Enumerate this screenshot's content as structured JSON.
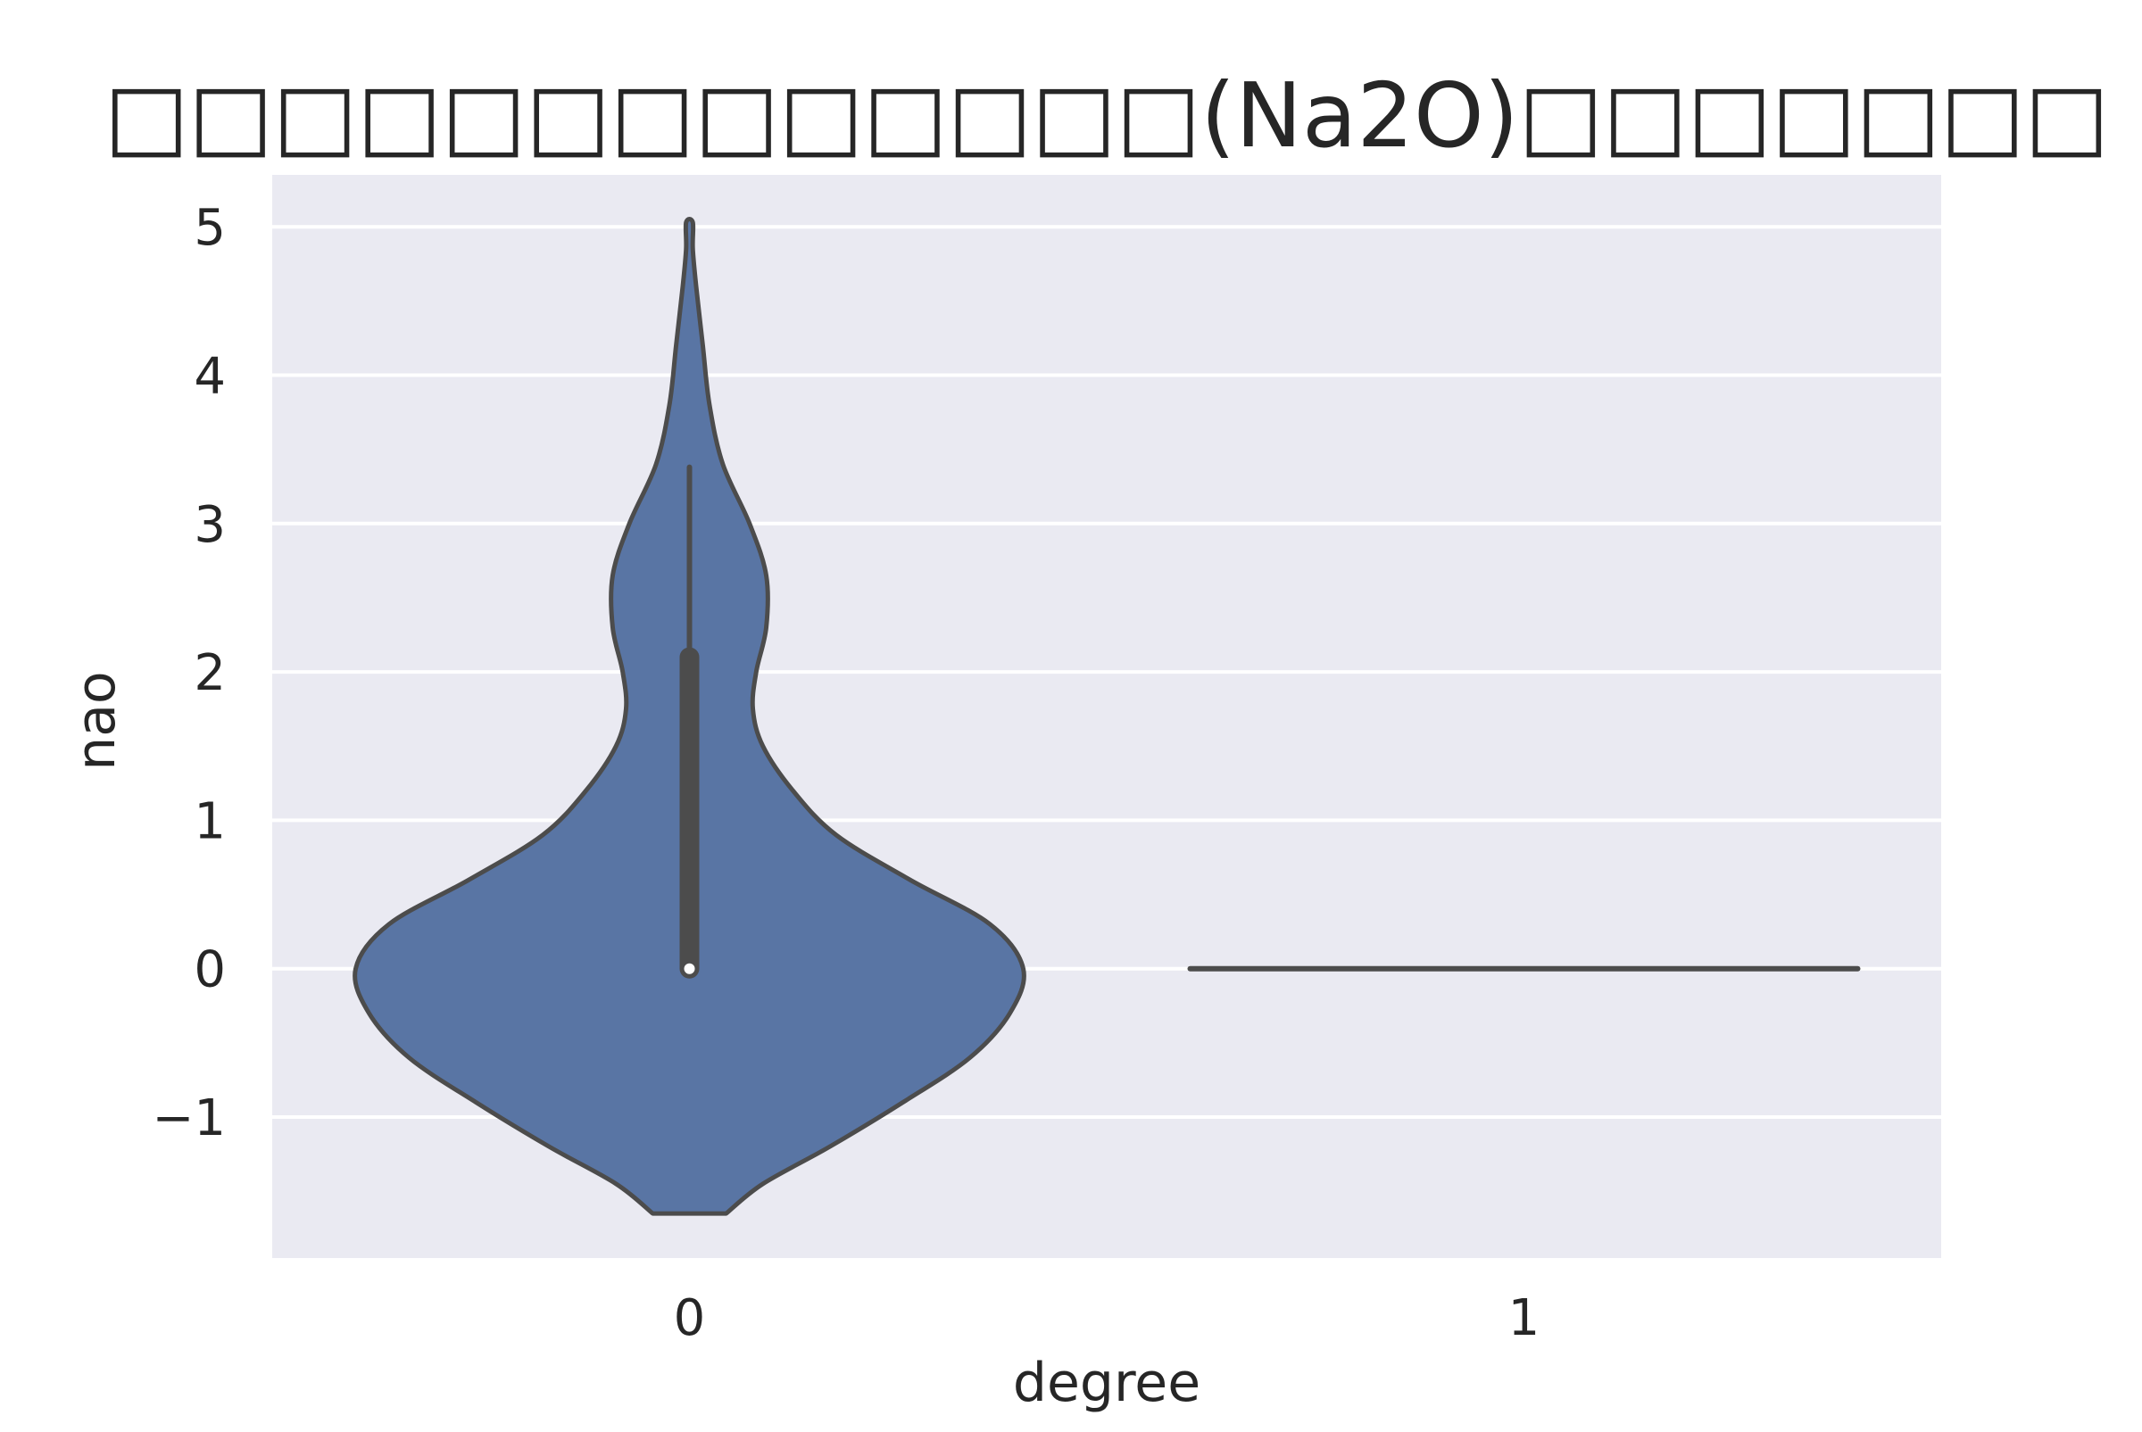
{
  "chart_data": {
    "type": "violin",
    "title": "□□□□□□□□□□□□□(Na2O)□□□□□□□",
    "xlabel": "degree",
    "ylabel": "nao",
    "categories": [
      "0",
      "1"
    ],
    "ylim": [
      -1.95,
      5.35
    ],
    "yticks": [
      -1,
      0,
      1,
      2,
      3,
      4,
      5
    ],
    "ytick_labels": [
      "−1",
      "0",
      "1",
      "2",
      "3",
      "4",
      "5"
    ],
    "grid": true,
    "violins": [
      {
        "category": "0",
        "color": "#5975a4",
        "min": -1.65,
        "max": 5.03,
        "median": 0.0,
        "q1": 0.0,
        "q3": 2.1,
        "whisker_low": 0.0,
        "whisker_high": 3.38,
        "density_profile": [
          {
            "y": -1.65,
            "w": 0.11
          },
          {
            "y": -1.45,
            "w": 0.22
          },
          {
            "y": -1.2,
            "w": 0.42
          },
          {
            "y": -0.9,
            "w": 0.64
          },
          {
            "y": -0.6,
            "w": 0.84
          },
          {
            "y": -0.3,
            "w": 0.96
          },
          {
            "y": 0.0,
            "w": 1.0
          },
          {
            "y": 0.3,
            "w": 0.9
          },
          {
            "y": 0.6,
            "w": 0.66
          },
          {
            "y": 0.9,
            "w": 0.44
          },
          {
            "y": 1.2,
            "w": 0.31
          },
          {
            "y": 1.5,
            "w": 0.22
          },
          {
            "y": 1.75,
            "w": 0.19
          },
          {
            "y": 2.0,
            "w": 0.2
          },
          {
            "y": 2.3,
            "w": 0.23
          },
          {
            "y": 2.65,
            "w": 0.23
          },
          {
            "y": 3.0,
            "w": 0.18
          },
          {
            "y": 3.4,
            "w": 0.1
          },
          {
            "y": 3.8,
            "w": 0.06
          },
          {
            "y": 4.2,
            "w": 0.04
          },
          {
            "y": 4.6,
            "w": 0.02
          },
          {
            "y": 4.85,
            "w": 0.01
          },
          {
            "y": 5.03,
            "w": 0.01
          }
        ]
      },
      {
        "category": "1",
        "color": "#4c4c4c",
        "min": 0.0,
        "max": 0.0,
        "median": 0.0,
        "q1": 0.0,
        "q3": 0.0
      }
    ],
    "colors": {
      "background": "#eaeaf2",
      "grid": "#ffffff",
      "outline": "#4c4c4c",
      "median_dot": "#ffffff"
    }
  }
}
